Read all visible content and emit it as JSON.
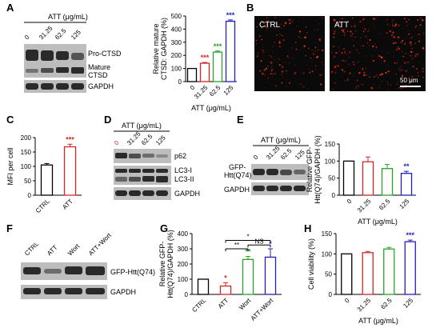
{
  "panels": {
    "A": "A",
    "B": "B",
    "C": "C",
    "D": "D",
    "E": "E",
    "F": "F",
    "G": "G",
    "H": "H"
  },
  "blotA": {
    "header": "ATT (μg/mL)",
    "lanes": [
      "0",
      "31.25",
      "62.5",
      "125"
    ],
    "labels": [
      "Pro-CTSD",
      "Mature",
      "CTSD",
      "GAPDH"
    ]
  },
  "blotD": {
    "header": "ATT (μg/mL)",
    "lanes": [
      "0",
      "31.25",
      "62.5",
      "125"
    ],
    "labels": [
      "p62",
      "LC3-I",
      "LC3-II",
      "GAPDH"
    ]
  },
  "blotE": {
    "header": "ATT (μg/mL)",
    "lanes": [
      "0",
      "31.25",
      "62.5",
      "125"
    ],
    "labels": [
      "GFP-",
      "Htt(Q74)",
      "GAPDH"
    ]
  },
  "blotF": {
    "lanes": [
      "CTRL",
      "ATT",
      "Wort",
      "ATT+Wort"
    ],
    "labels": [
      "GFP-Htt(Q74)",
      "GAPDH"
    ]
  },
  "microscopy": {
    "ctrl": "CTRL",
    "att": "ATT",
    "scale": "50 μm"
  },
  "chart_data": [
    {
      "id": "A",
      "type": "bar",
      "categories": [
        "0",
        "31.25",
        "62.5",
        "125"
      ],
      "values": [
        100,
        140,
        225,
        460
      ],
      "errors": [
        0,
        6,
        8,
        10
      ],
      "stars": [
        "",
        "***",
        "***",
        "***"
      ],
      "colors": [
        "#000000",
        "#d62728",
        "#2ca02c",
        "#1f1fbf"
      ],
      "ylim": [
        0,
        500
      ],
      "yticks": [
        0,
        100,
        200,
        300,
        400,
        500
      ],
      "ylabel": "Relative mature|CTSD: GAPDH (%)",
      "xlabel": "ATT (μg/mL)"
    },
    {
      "id": "C",
      "type": "bar",
      "categories": [
        "CTRL",
        "ATT"
      ],
      "values": [
        105,
        168
      ],
      "errors": [
        5,
        9
      ],
      "stars": [
        "",
        "***"
      ],
      "colors": [
        "#000000",
        "#d62728"
      ],
      "ylim": [
        0,
        200
      ],
      "yticks": [
        0,
        50,
        100,
        150,
        200
      ],
      "ylabel": "MFI per cell",
      "xlabel": ""
    },
    {
      "id": "E",
      "type": "bar",
      "categories": [
        "0",
        "31.25",
        "62.5",
        "125"
      ],
      "values": [
        100,
        98,
        78,
        64
      ],
      "errors": [
        0,
        14,
        12,
        6
      ],
      "stars": [
        "",
        "",
        "",
        "**"
      ],
      "colors": [
        "#000000",
        "#d62728",
        "#2ca02c",
        "#1f1fbf"
      ],
      "ylim": [
        0,
        150
      ],
      "yticks": [
        0,
        50,
        100,
        150
      ],
      "ylabel": "Relative GFP-|Htt(Q74)/GAPDH (%)",
      "xlabel": "ATT (μg/mL)"
    },
    {
      "id": "G",
      "type": "bar",
      "categories": [
        "CTRL",
        "ATT",
        "Wort",
        "ATT+Wort"
      ],
      "values": [
        100,
        55,
        230,
        245
      ],
      "errors": [
        0,
        22,
        20,
        55
      ],
      "stars": [
        "",
        "*",
        "**",
        "*"
      ],
      "colors": [
        "#000000",
        "#d62728",
        "#2ca02c",
        "#1f1fbf"
      ],
      "ylim": [
        0,
        400
      ],
      "yticks": [
        0,
        100,
        200,
        300,
        400
      ],
      "ylabel": "Relative GFP-|Htt(Q74)/GAPDH (%)",
      "xlabel": "",
      "brackets": [
        {
          "from": 1,
          "to": 2,
          "label": "**",
          "level": 300
        },
        {
          "from": 1,
          "to": 3,
          "label": "*",
          "level": 355
        },
        {
          "from": 2,
          "to": 3,
          "label": "NS",
          "level": 325
        }
      ]
    },
    {
      "id": "H",
      "type": "bar",
      "categories": [
        "0",
        "31.25",
        "62.5",
        "125"
      ],
      "values": [
        100,
        103,
        112,
        130
      ],
      "errors": [
        0,
        3,
        4,
        4
      ],
      "stars": [
        "",
        "",
        "",
        "***"
      ],
      "colors": [
        "#000000",
        "#d62728",
        "#2ca02c",
        "#1f1fbf"
      ],
      "ylim": [
        0,
        150
      ],
      "yticks": [
        0,
        50,
        100,
        150
      ],
      "ylabel": "Cell viability (%)",
      "xlabel": "ATT (μg/mL)"
    }
  ]
}
